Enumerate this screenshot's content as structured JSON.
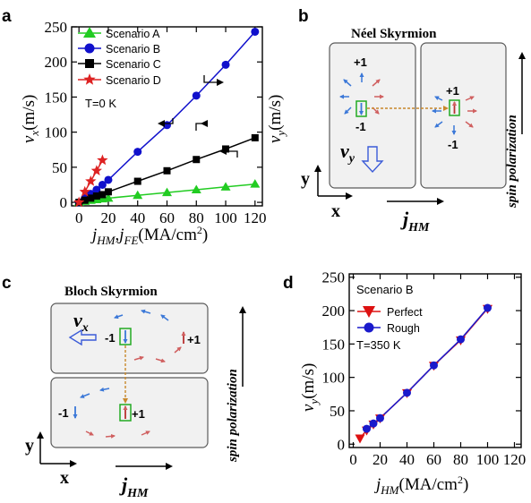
{
  "panels": {
    "a": {
      "label": "a",
      "legend": [
        "Scenario A",
        "Scenario B",
        "Scenario C",
        "Scenario D"
      ],
      "note": "T=0 K",
      "ylabel_left_sym": "v",
      "ylabel_left_sub": "x",
      "ylabel_left_unit": "(m/s)",
      "ylabel_right_sym": "v",
      "ylabel_right_sub": "y",
      "ylabel_right_unit": "(m/s)",
      "xlabel_j1": "j",
      "xlabel_sub1": "HM",
      "xlabel_comma": ",",
      "xlabel_j2": "j",
      "xlabel_sub2": "FE",
      "xlabel_unit": "(MA/cm",
      "xlabel_sup": "2",
      "xlabel_close": ")"
    },
    "b": {
      "label": "b",
      "title": "Néel Skyrmion",
      "plus": "+1",
      "minus": "-1",
      "plus2": "+1",
      "minus2": "-1",
      "v_sym": "v",
      "v_sub": "y",
      "axis_y": "y",
      "axis_x": "x",
      "j_sym": "j",
      "j_sub": "HM",
      "spin": "spin polarization"
    },
    "c": {
      "label": "c",
      "title": "Bloch Skyrmion",
      "minus": "-1",
      "plus": "+1",
      "plus2": "+1",
      "minus2": "-1",
      "v_sym": "v",
      "v_sub": "x",
      "axis_y": "y",
      "axis_x": "x",
      "j_sym": "j",
      "j_sub": "HM",
      "spin": "spin polarization"
    },
    "d": {
      "label": "d",
      "title": "Scenario B",
      "legend": [
        "Perfect",
        "Rough"
      ],
      "note": "T=350 K",
      "ylabel_sym": "v",
      "ylabel_sub": "y",
      "ylabel_unit": "(m/s)",
      "xlabel_sym": "j",
      "xlabel_sub": "HM",
      "xlabel_unit": "(MA/cm",
      "xlabel_sup": "2",
      "xlabel_close": ")"
    }
  },
  "chart_data": [
    {
      "type": "line",
      "xlim": [
        -5,
        125
      ],
      "ylim": [
        -5,
        250
      ],
      "xticks": [
        0,
        20,
        40,
        60,
        80,
        100,
        120
      ],
      "yticks": [
        0,
        50,
        100,
        150,
        200,
        250
      ],
      "xtick_labels": [
        "0",
        "20",
        "40",
        "60",
        "80",
        "100",
        "120"
      ],
      "ytick_labels": [
        "0",
        "50",
        "100",
        "150",
        "200",
        "250"
      ],
      "series": [
        {
          "name": "Scenario A",
          "color": "#22cc22",
          "marker": "triangle",
          "x": [
            0,
            4,
            8,
            12,
            16,
            20,
            40,
            60,
            80,
            100,
            120
          ],
          "y": [
            0,
            1.5,
            3,
            4,
            5,
            6,
            10,
            14,
            18,
            22,
            26
          ]
        },
        {
          "name": "Scenario B",
          "color": "#1010cc",
          "marker": "circle",
          "x": [
            0,
            4,
            8,
            12,
            16,
            20,
            40,
            60,
            80,
            100,
            120
          ],
          "y": [
            0,
            6,
            12,
            18,
            25,
            32,
            72,
            110,
            152,
            196,
            243
          ]
        },
        {
          "name": "Scenario C",
          "color": "#000000",
          "marker": "square",
          "x": [
            0,
            4,
            8,
            12,
            16,
            20,
            40,
            60,
            80,
            100,
            120
          ],
          "y": [
            0,
            3,
            6,
            9,
            11,
            15,
            30,
            45,
            61,
            76,
            92
          ]
        },
        {
          "name": "Scenario D",
          "color": "#dd2222",
          "marker": "star",
          "x": [
            0,
            4,
            8,
            12,
            16
          ],
          "y": [
            0,
            15,
            30,
            45,
            60
          ]
        }
      ]
    },
    {
      "type": "line",
      "xlim": [
        -3,
        125
      ],
      "ylim": [
        -5,
        255
      ],
      "xticks": [
        0,
        20,
        40,
        60,
        80,
        100,
        120
      ],
      "yticks": [
        0,
        50,
        100,
        150,
        200,
        250
      ],
      "xtick_labels": [
        "0",
        "20",
        "40",
        "60",
        "80",
        "100",
        "120"
      ],
      "ytick_labels": [
        "0",
        "50",
        "100",
        "150",
        "200",
        "250"
      ],
      "series": [
        {
          "name": "Perfect",
          "color": "#dd1111",
          "marker": "triangle-down",
          "x": [
            5,
            10,
            15,
            20,
            40,
            60,
            80,
            100
          ],
          "y": [
            9,
            21,
            30,
            39,
            77,
            118,
            156,
            203
          ]
        },
        {
          "name": "Rough",
          "color": "#1a1acc",
          "marker": "circle",
          "x": [
            10,
            15,
            20,
            40,
            60,
            80,
            100
          ],
          "y": [
            23,
            31,
            39,
            77,
            118,
            157,
            204
          ]
        }
      ]
    }
  ]
}
